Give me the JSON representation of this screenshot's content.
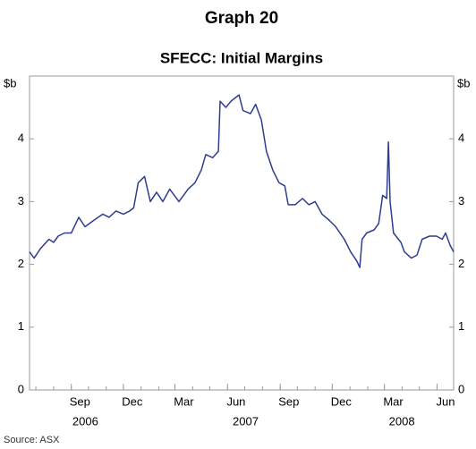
{
  "chart_data": {
    "type": "line",
    "title": "Graph 20",
    "subtitle": "SFECC: Initial Margins",
    "y_unit_label": "$b",
    "source": "Source: ASX",
    "xlim": [
      "2006-06-20",
      "2008-06-30"
    ],
    "xticks": [
      {
        "value": "2006-09",
        "label": "Sep"
      },
      {
        "value": "2006-12",
        "label": "Dec"
      },
      {
        "value": "2007-03",
        "label": "Mar"
      },
      {
        "value": "2007-06",
        "label": "Jun"
      },
      {
        "value": "2007-09",
        "label": "Sep"
      },
      {
        "value": "2007-12",
        "label": "Dec"
      },
      {
        "value": "2008-03",
        "label": "Mar"
      },
      {
        "value": "2008-06",
        "label": "Jun"
      }
    ],
    "years": [
      "2006",
      "2007",
      "2008"
    ],
    "ylim": [
      0,
      5
    ],
    "yticks": [
      0,
      1,
      2,
      3,
      4
    ],
    "series": [
      {
        "name": "Initial margins",
        "color": "#2e3d8f",
        "x": [
          "2006-06-20",
          "2006-06-28",
          "2006-07-09",
          "2006-07-24",
          "2006-08-01",
          "2006-08-09",
          "2006-08-20",
          "2006-09-01",
          "2006-09-14",
          "2006-09-25",
          "2006-10-10",
          "2006-10-26",
          "2006-11-06",
          "2006-11-18",
          "2006-12-01",
          "2006-12-12",
          "2006-12-19",
          "2006-12-27",
          "2007-01-07",
          "2007-01-17",
          "2007-01-28",
          "2007-02-08",
          "2007-02-20",
          "2007-03-08",
          "2007-03-24",
          "2007-04-05",
          "2007-04-16",
          "2007-04-24",
          "2007-05-06",
          "2007-05-16",
          "2007-05-19",
          "2007-05-29",
          "2007-06-07",
          "2007-06-21",
          "2007-06-28",
          "2007-07-11",
          "2007-07-20",
          "2007-07-30",
          "2007-08-08",
          "2007-08-19",
          "2007-08-30",
          "2007-09-09",
          "2007-09-15",
          "2007-09-27",
          "2007-10-10",
          "2007-10-21",
          "2007-11-01",
          "2007-11-13",
          "2007-11-26",
          "2007-12-07",
          "2007-12-22",
          "2008-01-02",
          "2008-01-13",
          "2008-01-18",
          "2008-01-22",
          "2008-01-30",
          "2008-02-12",
          "2008-02-20",
          "2008-02-27",
          "2008-03-05",
          "2008-03-08",
          "2008-03-11",
          "2008-03-17",
          "2008-03-30",
          "2008-04-05",
          "2008-04-17",
          "2008-04-27",
          "2008-05-06",
          "2008-05-19",
          "2008-05-31",
          "2008-06-10",
          "2008-06-16",
          "2008-06-24",
          "2008-06-30"
        ],
        "values": [
          2.2,
          2.1,
          2.25,
          2.4,
          2.35,
          2.45,
          2.5,
          2.5,
          2.75,
          2.6,
          2.7,
          2.8,
          2.75,
          2.85,
          2.8,
          2.85,
          2.9,
          3.3,
          3.4,
          3.0,
          3.15,
          3.0,
          3.2,
          3.0,
          3.2,
          3.3,
          3.5,
          3.75,
          3.7,
          3.8,
          4.6,
          4.5,
          4.6,
          4.7,
          4.45,
          4.4,
          4.55,
          4.3,
          3.8,
          3.5,
          3.3,
          3.25,
          2.95,
          2.95,
          3.05,
          2.95,
          3.0,
          2.8,
          2.7,
          2.6,
          2.4,
          2.2,
          2.05,
          1.95,
          2.4,
          2.5,
          2.55,
          2.65,
          3.1,
          3.05,
          3.95,
          3.0,
          2.5,
          2.35,
          2.2,
          2.1,
          2.15,
          2.4,
          2.45,
          2.45,
          2.4,
          2.5,
          2.3,
          2.2
        ]
      }
    ]
  }
}
